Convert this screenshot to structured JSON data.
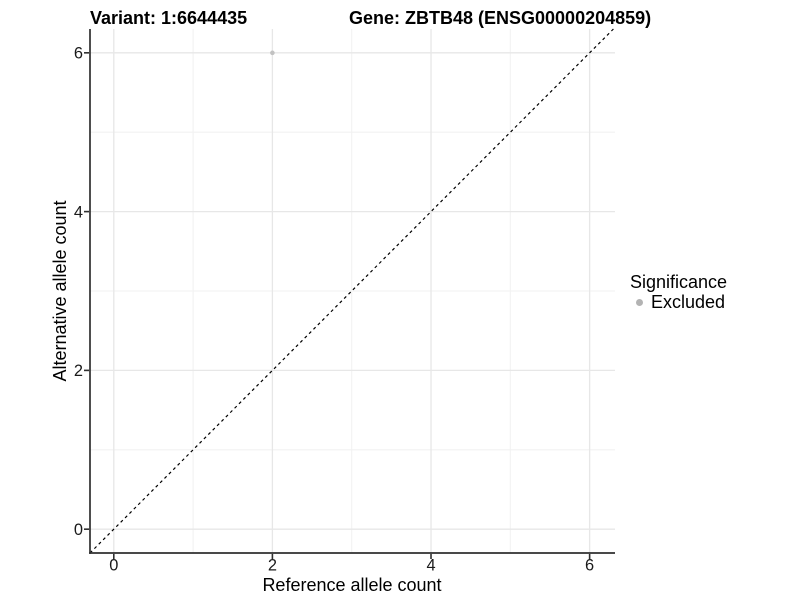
{
  "header": {
    "variant_title": "Variant: 1:6644435",
    "gene_title": "Gene: ZBTB48 (ENSG00000204859)"
  },
  "legend": {
    "title": "Significance",
    "items": [
      {
        "label": "Excluded",
        "color": "#b3b3b3"
      }
    ]
  },
  "chart_data": {
    "type": "scatter",
    "title": "Variant: 1:6644435    Gene: ZBTB48 (ENSG00000204859)",
    "xlabel": "Reference allele count",
    "ylabel": "Alternative allele count",
    "xlim": [
      -0.3,
      6.32
    ],
    "ylim": [
      -0.3,
      6.3
    ],
    "x_ticks": [
      0,
      2,
      4,
      6
    ],
    "y_ticks": [
      0,
      2,
      4,
      6
    ],
    "x_minor_ticks": [
      1,
      3,
      5
    ],
    "y_minor_ticks": [
      1,
      3,
      5
    ],
    "grid": "major+minor",
    "series": [
      {
        "name": "Excluded",
        "color": "#c2c2c2",
        "points": [
          {
            "x": 2,
            "y": 6
          }
        ]
      }
    ],
    "reference_line": {
      "slope": 1,
      "intercept": 0,
      "style": "dashed",
      "color": "#000000"
    },
    "legend_position": "right-middle",
    "colors": {
      "background": "#ffffff",
      "grid_major": "#e7e7e7",
      "grid_minor": "#f2f2f2",
      "axis_line": "#2f2f2f",
      "tick_mark": "#2f2f2f",
      "tick_text": "#1a1a1a",
      "title_text": "#000000"
    }
  }
}
